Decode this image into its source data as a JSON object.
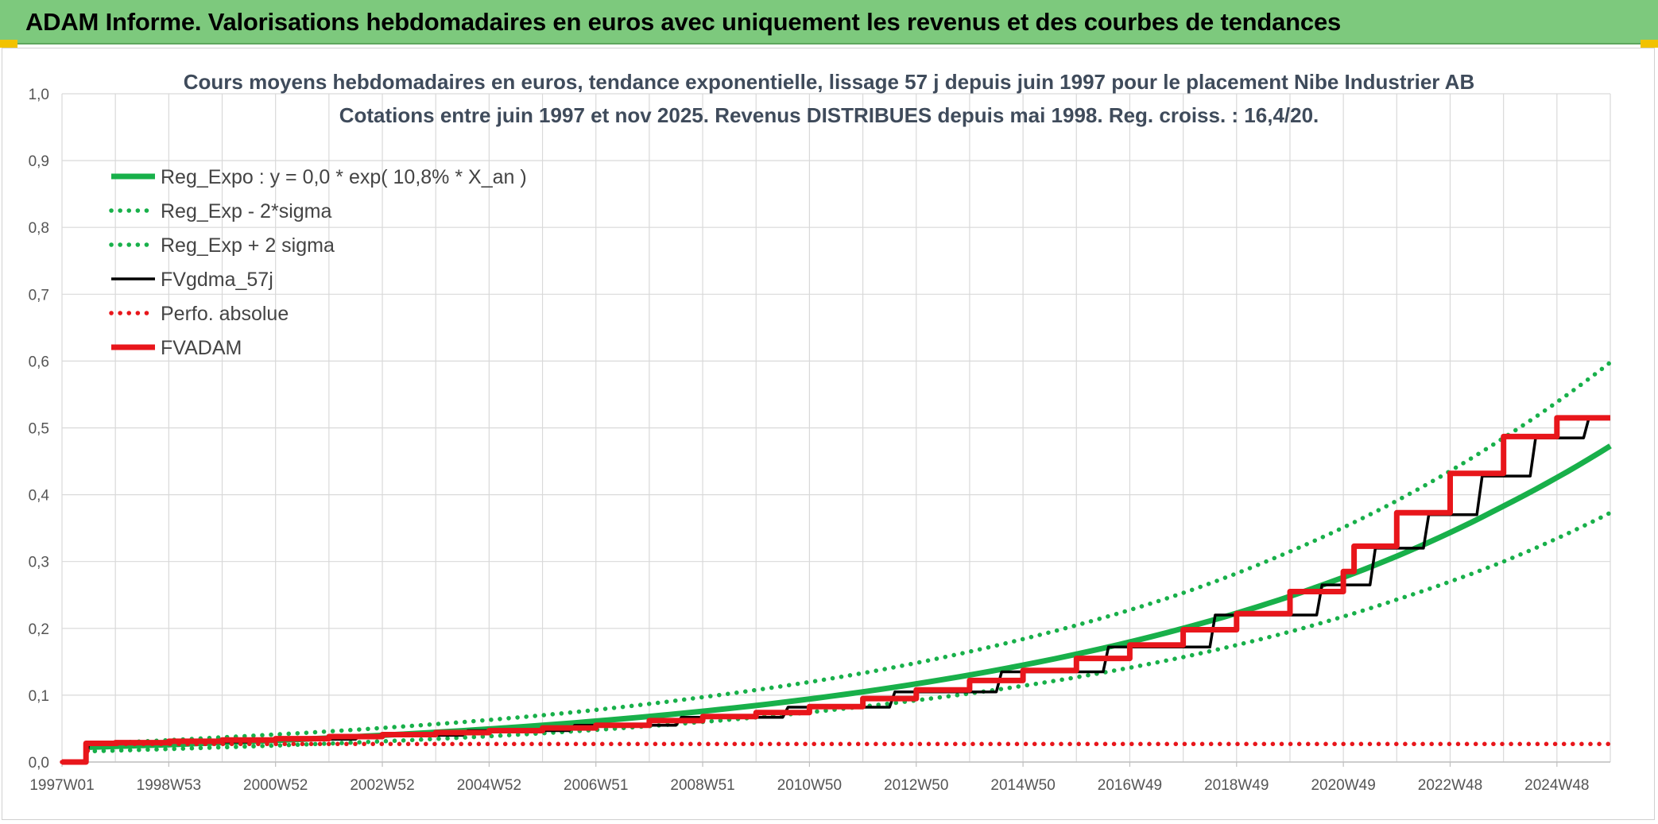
{
  "banner": {
    "title": "ADAM Informe. Valorisations hebdomadaires en euros avec uniquement les revenus et des courbes de tendances"
  },
  "colors": {
    "banner_bg": "#7dc97d",
    "green": "#18b04a",
    "black": "#000000",
    "red": "#e8161b",
    "grid": "#d9d9d9"
  },
  "chart_data": {
    "type": "line",
    "title": "Cours moyens hebdomadaires en euros, tendance exponentielle, lissage 57 j depuis juin 1997 pour le placement Nibe Industrier AB",
    "subtitle": "Cotations entre juin 1997 et nov 2025. Revenus DISTRIBUES depuis mai 1998. Reg. croiss. : 16,4/20.",
    "xlabel": "",
    "ylabel": "",
    "ylim": [
      0,
      1.0
    ],
    "xlim": [
      1997.0,
      2026.0
    ],
    "grid": true,
    "legend_position": "top-left",
    "y_ticks": [
      "0,0",
      "0,1",
      "0,2",
      "0,3",
      "0,4",
      "0,5",
      "0,6",
      "0,7",
      "0,8",
      "0,9",
      "1,0"
    ],
    "x_ticks": [
      {
        "label": "1997W01",
        "x": 1997.0
      },
      {
        "label": "1998W53",
        "x": 1999.0
      },
      {
        "label": "2000W52",
        "x": 2001.0
      },
      {
        "label": "2002W52",
        "x": 2003.0
      },
      {
        "label": "2004W52",
        "x": 2005.0
      },
      {
        "label": "2006W51",
        "x": 2007.0
      },
      {
        "label": "2008W51",
        "x": 2009.0
      },
      {
        "label": "2010W50",
        "x": 2011.0
      },
      {
        "label": "2012W50",
        "x": 2013.0
      },
      {
        "label": "2014W50",
        "x": 2015.0
      },
      {
        "label": "2016W49",
        "x": 2017.0
      },
      {
        "label": "2018W49",
        "x": 2019.0
      },
      {
        "label": "2020W49",
        "x": 2021.0
      },
      {
        "label": "2022W48",
        "x": 2023.0
      },
      {
        "label": "2024W48",
        "x": 2025.0
      }
    ],
    "series": [
      {
        "name": "Reg_Expo : y = 0,0 * exp( 10,8% *  X_an )",
        "style": "solid-thick",
        "color": "#18b04a",
        "x": [
          1997.45,
          2000,
          2003,
          2006,
          2009,
          2012,
          2015,
          2018,
          2020,
          2022,
          2024,
          2026
        ],
        "y": [
          0.022,
          0.029,
          0.04,
          0.055,
          0.076,
          0.105,
          0.145,
          0.2,
          0.248,
          0.308,
          0.383,
          0.473
        ]
      },
      {
        "name": "Reg_Exp - 2*sigma",
        "style": "dotted",
        "color": "#18b04a",
        "x": [
          1997.45,
          2000,
          2003,
          2006,
          2009,
          2012,
          2015,
          2018,
          2020,
          2022,
          2024,
          2026
        ],
        "y": [
          0.016,
          0.022,
          0.031,
          0.043,
          0.06,
          0.083,
          0.114,
          0.157,
          0.195,
          0.243,
          0.3,
          0.373
        ]
      },
      {
        "name": "Reg_Exp + 2 sigma",
        "style": "dotted",
        "color": "#18b04a",
        "x": [
          1997.45,
          2000,
          2003,
          2006,
          2009,
          2012,
          2015,
          2018,
          2020,
          2022,
          2024,
          2026
        ],
        "y": [
          0.027,
          0.037,
          0.051,
          0.07,
          0.097,
          0.133,
          0.184,
          0.253,
          0.315,
          0.391,
          0.485,
          0.598
        ]
      },
      {
        "name": "FVgdma_57j",
        "style": "solid",
        "color": "#000000",
        "x": [
          1997.0,
          1997.45,
          1997.5,
          1998.5,
          1998.6,
          2000.5,
          2000.6,
          2002.5,
          2002.6,
          2004.5,
          2004.6,
          2006.5,
          2006.6,
          2008.5,
          2008.6,
          2010.5,
          2010.6,
          2012.5,
          2012.6,
          2014.5,
          2014.6,
          2016.5,
          2016.6,
          2018.5,
          2018.6,
          2020.5,
          2020.6,
          2021.5,
          2021.6,
          2022.5,
          2022.6,
          2023.5,
          2023.6,
          2024.5,
          2024.6,
          2025.5,
          2025.6,
          2026.0
        ],
        "y": [
          0.0,
          0.0,
          0.027,
          0.027,
          0.03,
          0.03,
          0.034,
          0.034,
          0.04,
          0.04,
          0.047,
          0.047,
          0.055,
          0.055,
          0.067,
          0.067,
          0.082,
          0.082,
          0.105,
          0.105,
          0.135,
          0.135,
          0.172,
          0.172,
          0.22,
          0.22,
          0.265,
          0.265,
          0.32,
          0.32,
          0.37,
          0.37,
          0.428,
          0.428,
          0.485,
          0.485,
          0.515,
          0.515
        ]
      },
      {
        "name": "Perfo. absolue",
        "style": "dotted",
        "color": "#e8161b",
        "x": [
          1997.0,
          1997.45,
          1997.5,
          2026.0
        ],
        "y": [
          0.0,
          0.0,
          0.027,
          0.027
        ]
      },
      {
        "name": "FVADAM",
        "style": "solid-thick",
        "color": "#e8161b",
        "x": [
          1997.0,
          1997.45,
          1997.45,
          1998.0,
          1998.0,
          1999.0,
          1999.0,
          2000.0,
          2000.0,
          2001.0,
          2001.0,
          2002.0,
          2002.0,
          2003.0,
          2003.0,
          2004.0,
          2004.0,
          2005.0,
          2005.0,
          2006.0,
          2006.0,
          2007.0,
          2007.0,
          2008.0,
          2008.0,
          2009.0,
          2009.0,
          2010.0,
          2010.0,
          2011.0,
          2011.0,
          2012.0,
          2012.0,
          2013.0,
          2013.0,
          2014.0,
          2014.0,
          2015.0,
          2015.0,
          2016.0,
          2016.0,
          2017.0,
          2017.0,
          2018.0,
          2018.0,
          2019.0,
          2019.0,
          2020.0,
          2020.0,
          2021.0,
          2021.0,
          2021.2,
          2021.2,
          2022.0,
          2022.0,
          2023.0,
          2023.0,
          2024.0,
          2024.0,
          2025.0,
          2025.0,
          2025.5,
          2025.5,
          2026.0
        ],
        "y": [
          0.0,
          0.0,
          0.028,
          0.028,
          0.029,
          0.029,
          0.031,
          0.031,
          0.033,
          0.033,
          0.035,
          0.035,
          0.038,
          0.038,
          0.041,
          0.041,
          0.044,
          0.044,
          0.047,
          0.047,
          0.051,
          0.051,
          0.055,
          0.055,
          0.062,
          0.062,
          0.068,
          0.068,
          0.074,
          0.074,
          0.083,
          0.083,
          0.095,
          0.095,
          0.108,
          0.108,
          0.122,
          0.122,
          0.137,
          0.137,
          0.155,
          0.155,
          0.175,
          0.175,
          0.198,
          0.198,
          0.222,
          0.222,
          0.255,
          0.255,
          0.285,
          0.285,
          0.323,
          0.323,
          0.373,
          0.373,
          0.432,
          0.432,
          0.487,
          0.487,
          0.515,
          0.515,
          0.515,
          0.515
        ]
      }
    ]
  }
}
